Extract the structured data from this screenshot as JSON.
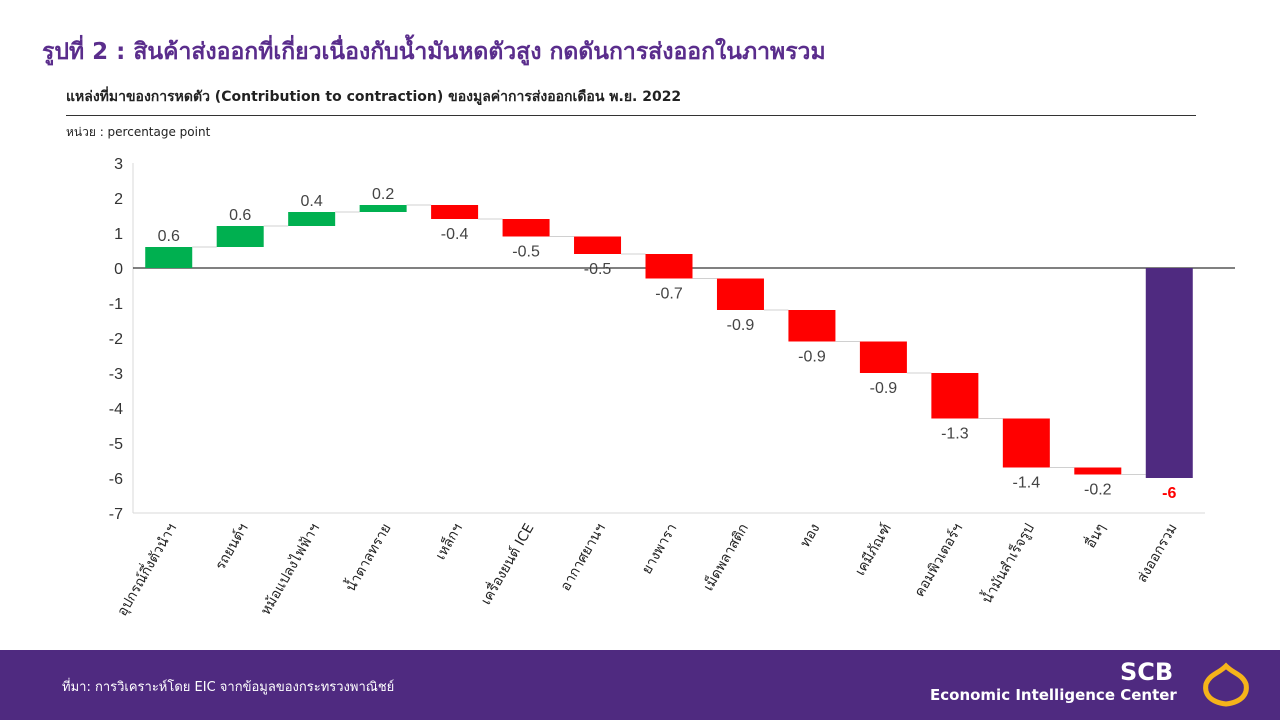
{
  "title": "รูปที่ 2 : สินค้าส่งออกที่เกี่ยวเนื่องกับน้ำมันหดตัวสูง กดดันการส่งออกในภาพรวม",
  "subtitle": "แหล่งที่มาของการหดตัว (Contribution to contraction) ของมูลค่าการส่งออกเดือน พ.ย. 2022",
  "unit": "หน่วย : percentage point",
  "footer": {
    "source": "ที่มา: การวิเคราะห์โดย EIC จากข้อมูลของกระทรวงพาณิชย์",
    "logo_scb": "SCB",
    "logo_eic": "Economic Intelligence Center"
  },
  "colors": {
    "increase": "#00b050",
    "decrease": "#ff0000",
    "total": "#4f2a80",
    "total_label": "#ff0000"
  },
  "chart_data": {
    "type": "waterfall",
    "categories": [
      "อุปกรณ์กึ่งตัวนำฯ",
      "รถยนต์ฯ",
      "หม้อแปลงไฟฟ้าฯ",
      "น้ำตาลทราย",
      "เหล็กฯ",
      "เครื่องยนต์ ICE",
      "อากาศยานฯ",
      "ยางพารา",
      "เม็ดพลาสติก",
      "ทอง",
      "เคมีภัณฑ์",
      "คอมพิวเตอร์ฯ",
      "น้ำมันสำเร็จรูป",
      "อื่นๆ",
      "ส่งออกรวม"
    ],
    "values": [
      0.6,
      0.6,
      0.4,
      0.2,
      -0.4,
      -0.5,
      -0.5,
      -0.7,
      -0.9,
      -0.9,
      -0.9,
      -1.3,
      -1.4,
      -0.2,
      -6
    ],
    "labels": [
      "0.6",
      "0.6",
      "0.4",
      "0.2",
      "-0.4",
      "-0.5",
      "-0.5",
      "-0.7",
      "-0.9",
      "-0.9",
      "-0.9",
      "-1.3",
      "-1.4",
      "-0.2",
      "-6"
    ],
    "total_index": 14,
    "ylim": [
      -7,
      3
    ],
    "yticks": [
      3,
      2,
      1,
      0,
      -1,
      -2,
      -3,
      -4,
      -5,
      -6,
      -7
    ],
    "grid": false,
    "legend": "none"
  }
}
